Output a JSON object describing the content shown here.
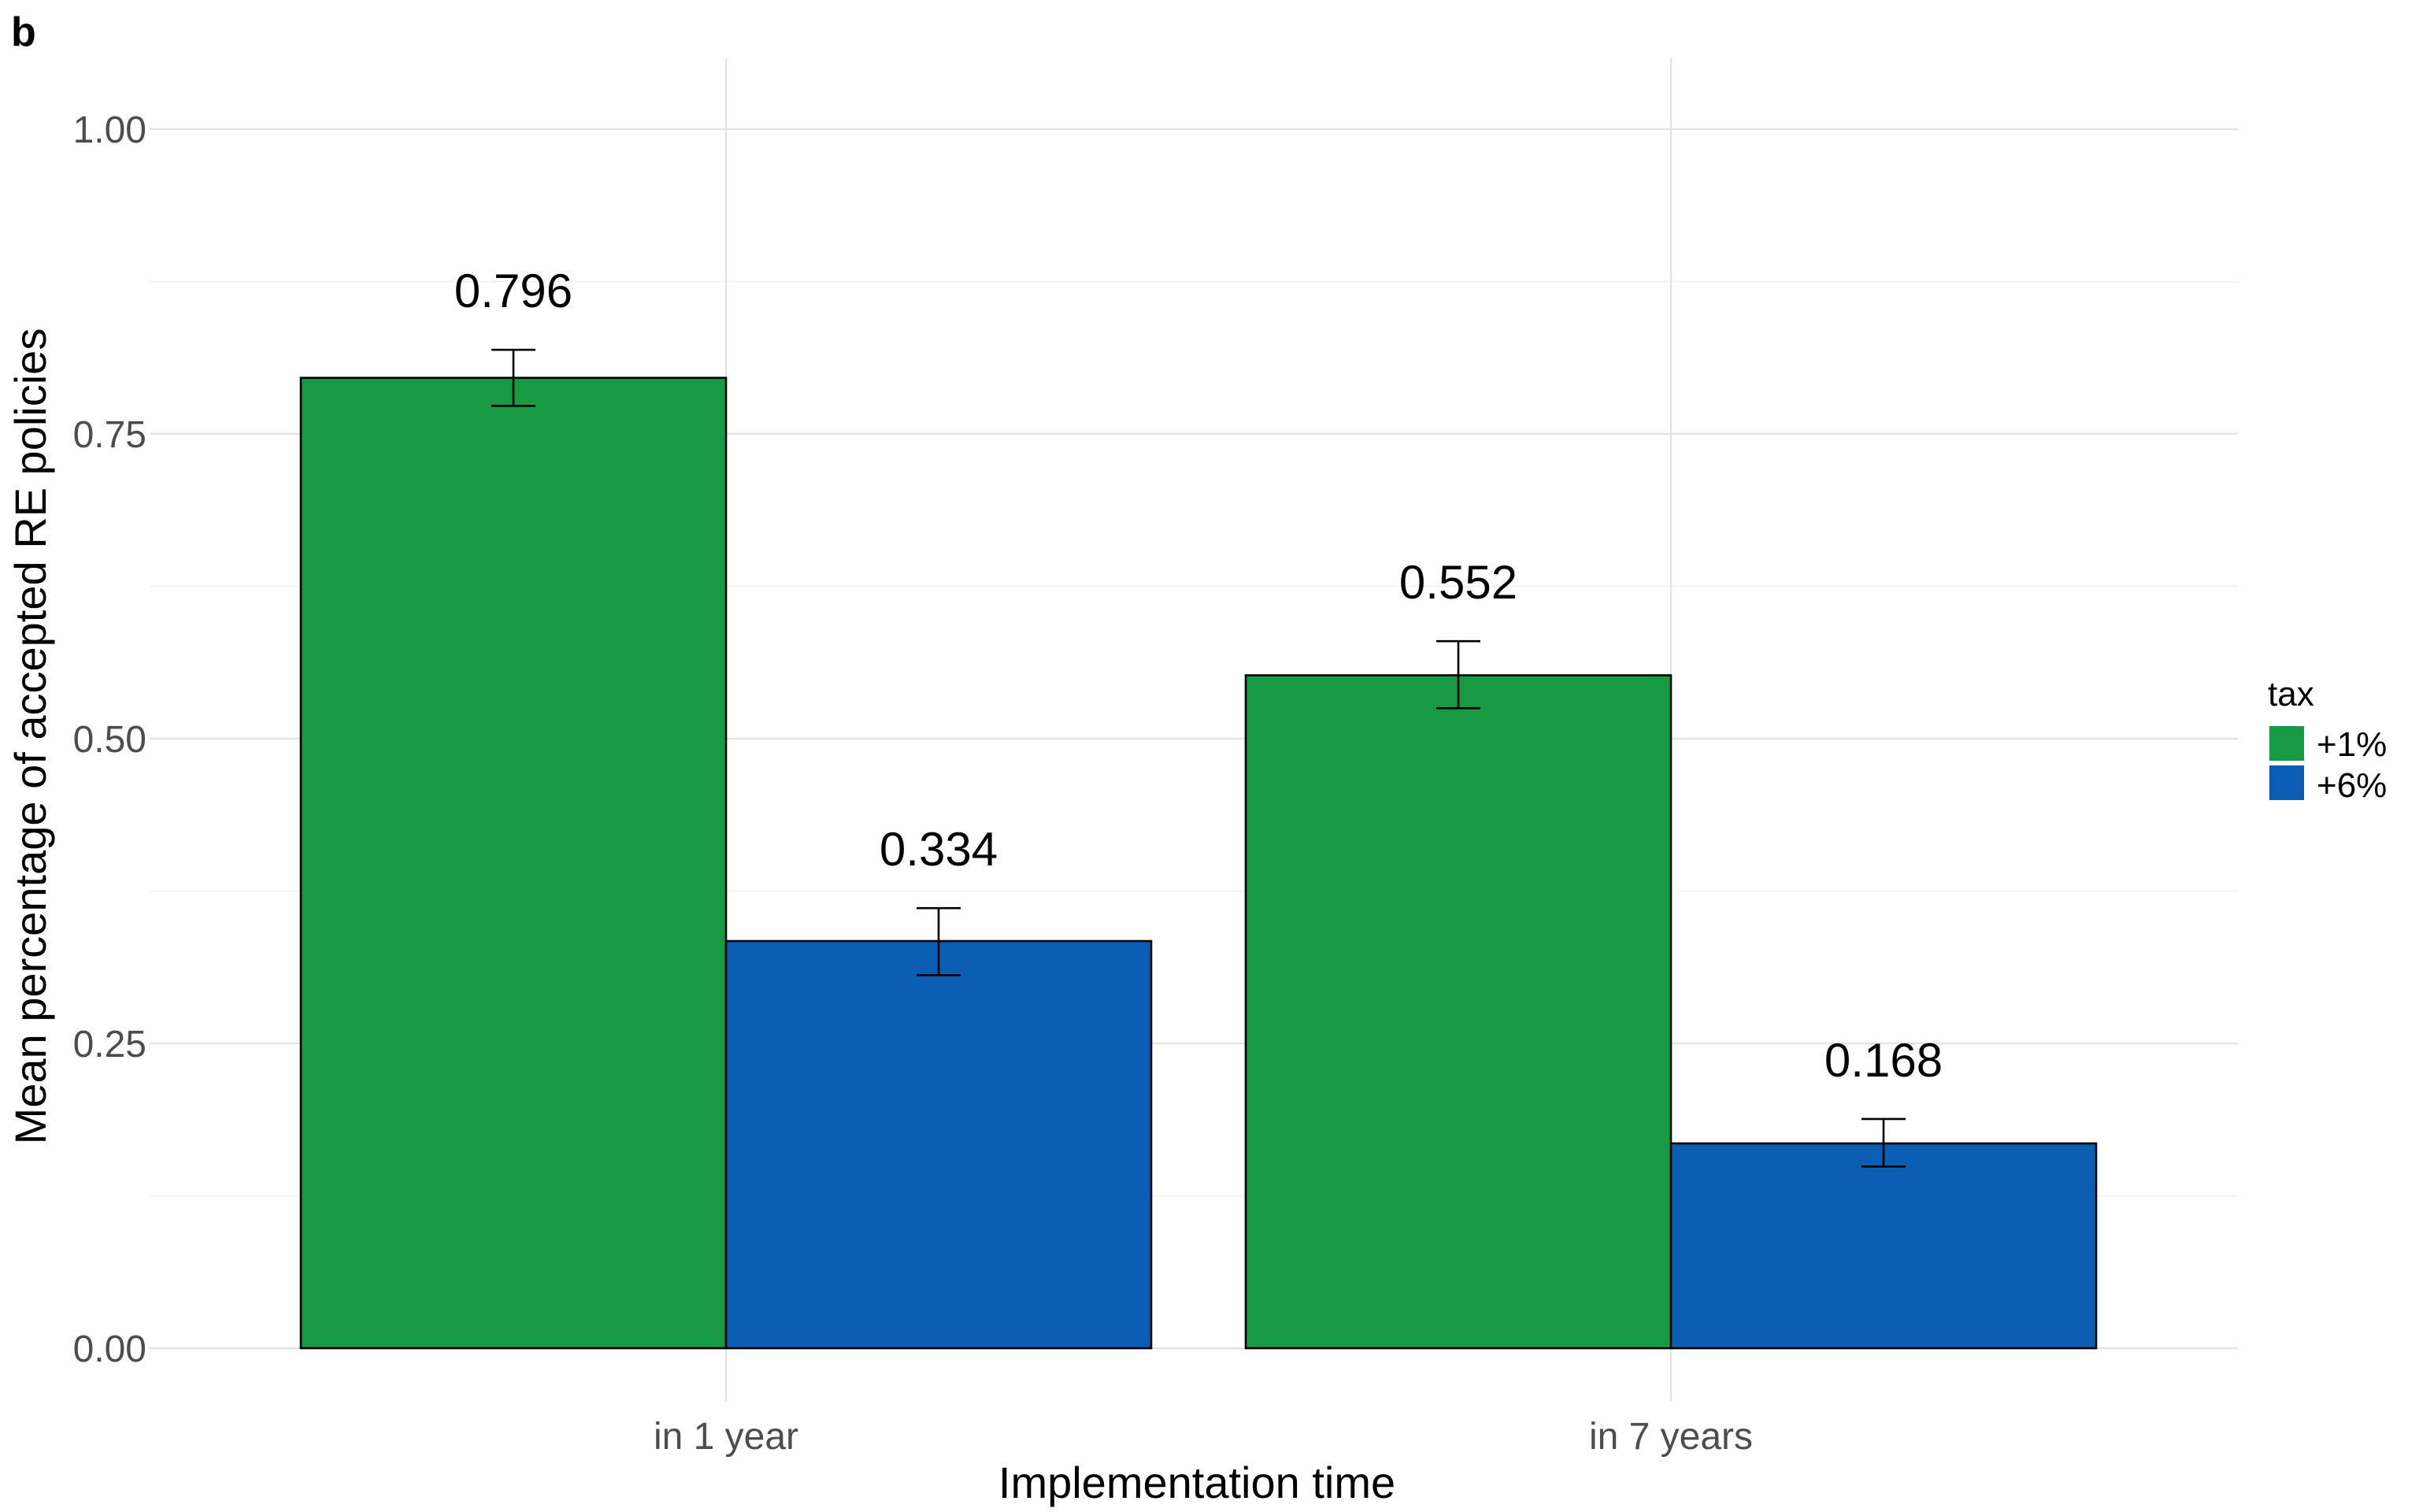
{
  "panel_label": "b",
  "chart_data": {
    "type": "bar",
    "xlabel": "Implementation time",
    "ylabel": "Mean percentage of accepted RE policies",
    "categories": [
      "in 1 year",
      "in 7 years"
    ],
    "ylim": [
      0,
      1.04
    ],
    "yticks": [
      0.0,
      0.25,
      0.5,
      0.75,
      1.0
    ],
    "ytick_labels": [
      "0.00",
      "0.25",
      "0.50",
      "0.75",
      "1.00"
    ],
    "grid": true,
    "legend": {
      "title": "tax",
      "placement": "right"
    },
    "series": [
      {
        "name": "+1%",
        "color": "#189943",
        "values": [
          0.796,
          0.552
        ],
        "value_labels": [
          "0.796",
          "0.552"
        ],
        "error_low": [
          0.773,
          0.525
        ],
        "error_high": [
          0.819,
          0.58
        ]
      },
      {
        "name": "+6%",
        "color": "#0b5cb3",
        "values": [
          0.334,
          0.168
        ],
        "value_labels": [
          "0.334",
          "0.168"
        ],
        "error_low": [
          0.306,
          0.149
        ],
        "error_high": [
          0.361,
          0.188
        ]
      }
    ]
  }
}
